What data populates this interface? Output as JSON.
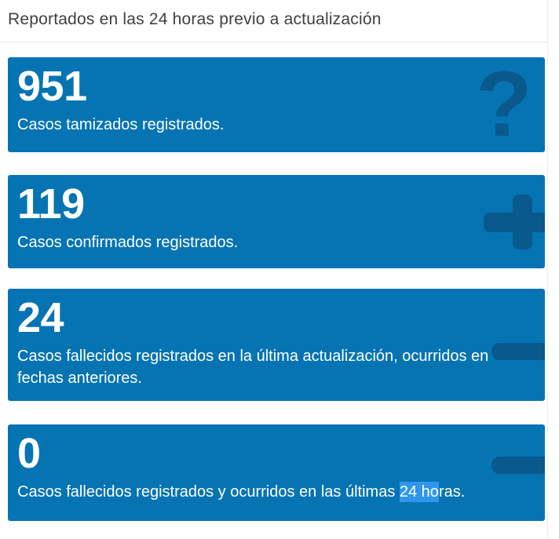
{
  "header": {
    "title": "Reportados en las 24 horas previo a actualización"
  },
  "colors": {
    "page_bg": "#ffffff",
    "card_bg": "#0674b2",
    "card_text": "#ffffff",
    "icon_tint": "#09598c",
    "selection_highlight": "#2e96ec",
    "header_text": "#3f3f3f",
    "divider": "#e7e7e7"
  },
  "cards": [
    {
      "value": "951",
      "label": "Casos tamizados registrados.",
      "icon": "question-mark",
      "icon_glyph": "?"
    },
    {
      "value": "119",
      "label": "Casos confirmados registrados.",
      "icon": "plus"
    },
    {
      "value": "24",
      "label": "Casos fallecidos registrados en la última actualización, ocurridos en fechas anteriores.",
      "icon": "minus"
    },
    {
      "value": "0",
      "label": "Casos fallecidos registrados y ocurridos en las últimas 24 horas.",
      "label_before": "Casos fallecidos registrados y ocurridos en las últimas ",
      "label_highlight": "24 ho",
      "label_after": "ras.",
      "icon": "minus"
    }
  ]
}
